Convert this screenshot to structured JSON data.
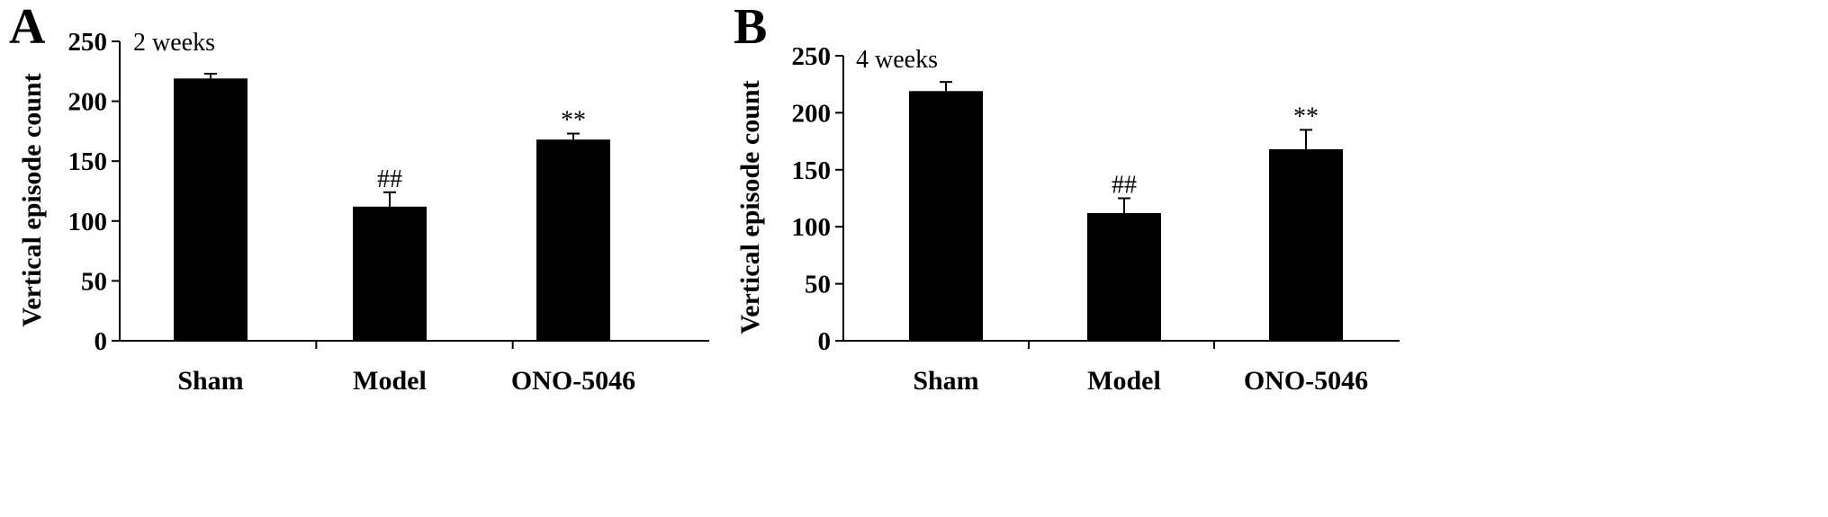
{
  "chart_data": [
    {
      "type": "bar",
      "panel_label": "A",
      "annotation": "2 weeks",
      "ylabel": "Vertical episode count",
      "xlabel": "",
      "categories": [
        "Sham",
        "Model",
        "ONO-5046"
      ],
      "values": [
        219,
        112,
        168
      ],
      "errors": [
        4,
        12,
        5
      ],
      "significance": [
        "",
        "##",
        "**"
      ],
      "ylim": [
        0,
        250
      ],
      "yticks": [
        0,
        50,
        100,
        150,
        200,
        250
      ],
      "bar_color": "#000000",
      "grid": false,
      "legend": "none"
    },
    {
      "type": "bar",
      "panel_label": "B",
      "annotation": "4 weeks",
      "ylabel": "Vertical episode count",
      "xlabel": "",
      "categories": [
        "Sham",
        "Model",
        "ONO-5046"
      ],
      "values": [
        219,
        112,
        168
      ],
      "errors": [
        8,
        13,
        17
      ],
      "significance": [
        "",
        "##",
        "**"
      ],
      "ylim": [
        0,
        250
      ],
      "yticks": [
        0,
        50,
        100,
        150,
        200,
        250
      ],
      "bar_color": "#000000",
      "grid": false,
      "legend": "none"
    }
  ]
}
